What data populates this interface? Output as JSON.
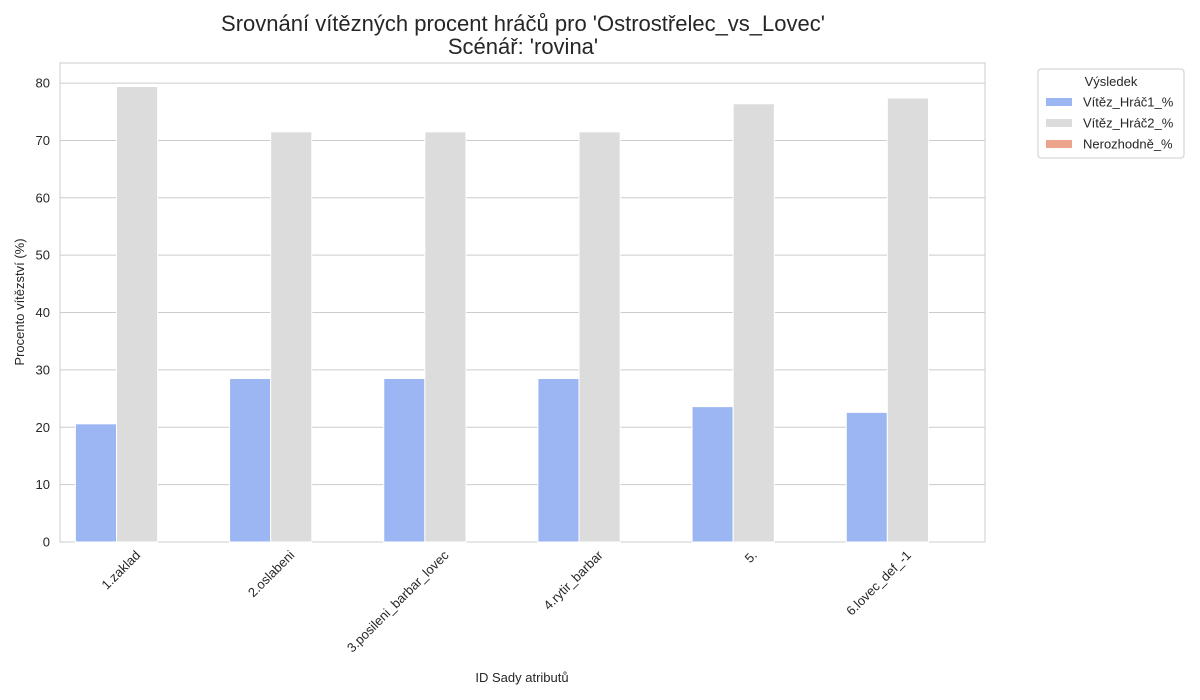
{
  "chart_data": {
    "type": "bar",
    "title": "Srovnání vítězných procent hráčů pro 'Ostrostřelec_vs_Lovec'",
    "subtitle": "Scénář: 'rovina'",
    "xlabel": "ID Sady atributů",
    "ylabel": "Procento vítězství (%)",
    "ylim": [
      0,
      83.5
    ],
    "yticks": [
      0,
      10,
      20,
      30,
      40,
      50,
      60,
      70,
      80
    ],
    "grid": true,
    "legend_placement": "outside-top-right",
    "legend_title": "Výsledek",
    "categories": [
      "1.zaklad",
      "2.oslabeni",
      "3.posileni_barbar_lovec",
      "4.rytir_barbar",
      "5.",
      "6.lovec_def_-1"
    ],
    "series": [
      {
        "name": "Vítěz_Hráč1_%",
        "color": "#9bb6f3",
        "values": [
          20.6,
          28.5,
          28.5,
          28.5,
          23.6,
          22.6
        ]
      },
      {
        "name": "Vítěz_Hráč2_%",
        "color": "#dcdcdc",
        "values": [
          79.4,
          71.5,
          71.5,
          71.5,
          76.4,
          77.4
        ]
      },
      {
        "name": "Nerozhodně_%",
        "color": "#eba38a",
        "values": [
          0,
          0,
          0,
          0,
          0,
          0
        ]
      }
    ]
  }
}
